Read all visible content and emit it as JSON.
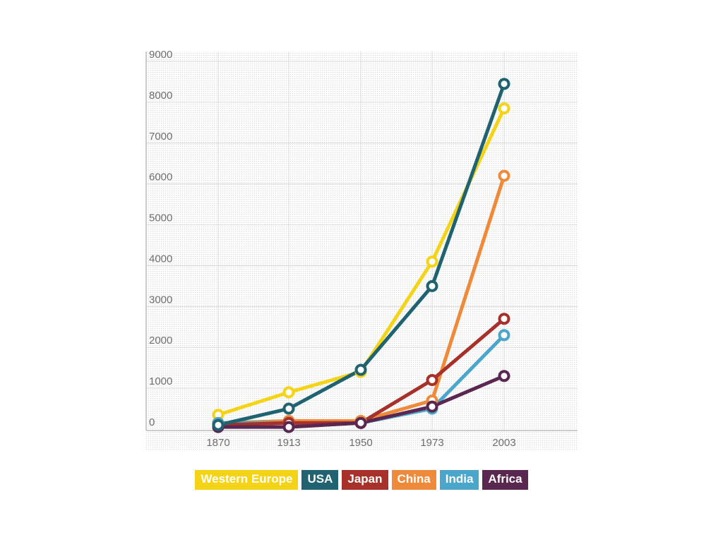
{
  "chart_data": {
    "type": "line",
    "title": "",
    "xlabel": "",
    "ylabel": "",
    "categories": [
      "1870",
      "1913",
      "1950",
      "1973",
      "2003"
    ],
    "ylim": [
      0,
      9000
    ],
    "yticks": [
      0,
      1000,
      2000,
      3000,
      4000,
      5000,
      6000,
      7000,
      8000,
      9000
    ],
    "grid": true,
    "legend_position": "bottom",
    "series": [
      {
        "name": "Western Europe",
        "color": "#f5d316",
        "values": [
          350,
          900,
          1400,
          4100,
          7850
        ]
      },
      {
        "name": "China",
        "color": "#ee8a3a",
        "values": [
          150,
          200,
          200,
          700,
          6200
        ]
      },
      {
        "name": "India",
        "color": "#4ba6cb",
        "values": [
          150,
          150,
          150,
          500,
          2300
        ]
      },
      {
        "name": "Japan",
        "color": "#a8302a",
        "values": [
          100,
          150,
          150,
          1200,
          2700
        ]
      },
      {
        "name": "Africa",
        "color": "#5a2750",
        "values": [
          50,
          50,
          150,
          550,
          1300
        ]
      },
      {
        "name": "USA",
        "color": "#1f6370",
        "values": [
          100,
          500,
          1450,
          3500,
          8450
        ]
      }
    ],
    "legend": [
      {
        "name": "Western Europe",
        "color": "#f5d316"
      },
      {
        "name": "USA",
        "color": "#1f6370"
      },
      {
        "name": "Japan",
        "color": "#a8302a"
      },
      {
        "name": "China",
        "color": "#ee8a3a"
      },
      {
        "name": "India",
        "color": "#4ba6cb"
      },
      {
        "name": "Africa",
        "color": "#5a2750"
      }
    ]
  }
}
